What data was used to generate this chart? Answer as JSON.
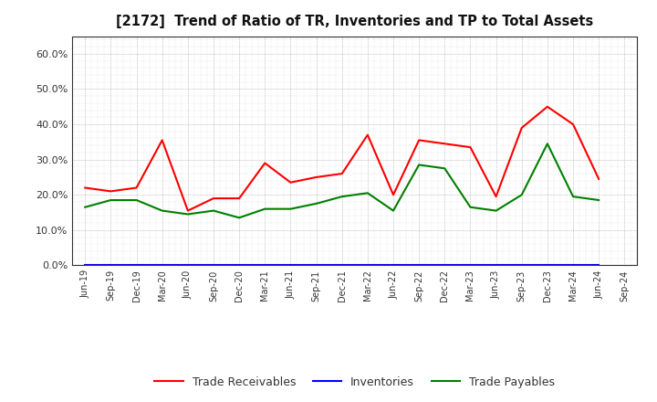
{
  "title": "[2172]  Trend of Ratio of TR, Inventories and TP to Total Assets",
  "x_labels": [
    "Jun-19",
    "Sep-19",
    "Dec-19",
    "Mar-20",
    "Jun-20",
    "Sep-20",
    "Dec-20",
    "Mar-21",
    "Jun-21",
    "Sep-21",
    "Dec-21",
    "Mar-22",
    "Jun-22",
    "Sep-22",
    "Dec-22",
    "Mar-23",
    "Jun-23",
    "Sep-23",
    "Dec-23",
    "Mar-24",
    "Jun-24",
    "Sep-24"
  ],
  "trade_receivables": [
    0.22,
    0.21,
    0.22,
    0.355,
    0.155,
    0.19,
    0.19,
    0.29,
    0.235,
    0.25,
    0.26,
    0.37,
    0.2,
    0.355,
    0.345,
    0.335,
    0.195,
    0.39,
    0.45,
    0.4,
    0.245,
    null
  ],
  "inventories": [
    0.001,
    0.001,
    0.001,
    0.001,
    0.001,
    0.001,
    0.001,
    0.001,
    0.001,
    0.001,
    0.001,
    0.001,
    0.001,
    0.001,
    0.001,
    0.001,
    0.001,
    0.001,
    0.001,
    0.001,
    0.001,
    null
  ],
  "trade_payables": [
    0.165,
    0.185,
    0.185,
    0.155,
    0.145,
    0.155,
    0.135,
    0.16,
    0.16,
    0.175,
    0.195,
    0.205,
    0.155,
    0.285,
    0.275,
    0.165,
    0.155,
    0.2,
    0.345,
    0.195,
    0.185,
    null
  ],
  "tr_color": "#ff0000",
  "inv_color": "#0000ff",
  "tp_color": "#008000",
  "ylim": [
    0.0,
    0.65
  ],
  "yticks": [
    0.0,
    0.1,
    0.2,
    0.3,
    0.4,
    0.5,
    0.6
  ],
  "legend_labels": [
    "Trade Receivables",
    "Inventories",
    "Trade Payables"
  ],
  "bg_color": "#ffffff",
  "plot_bg_color": "#ffffff",
  "grid_color": "#999999"
}
